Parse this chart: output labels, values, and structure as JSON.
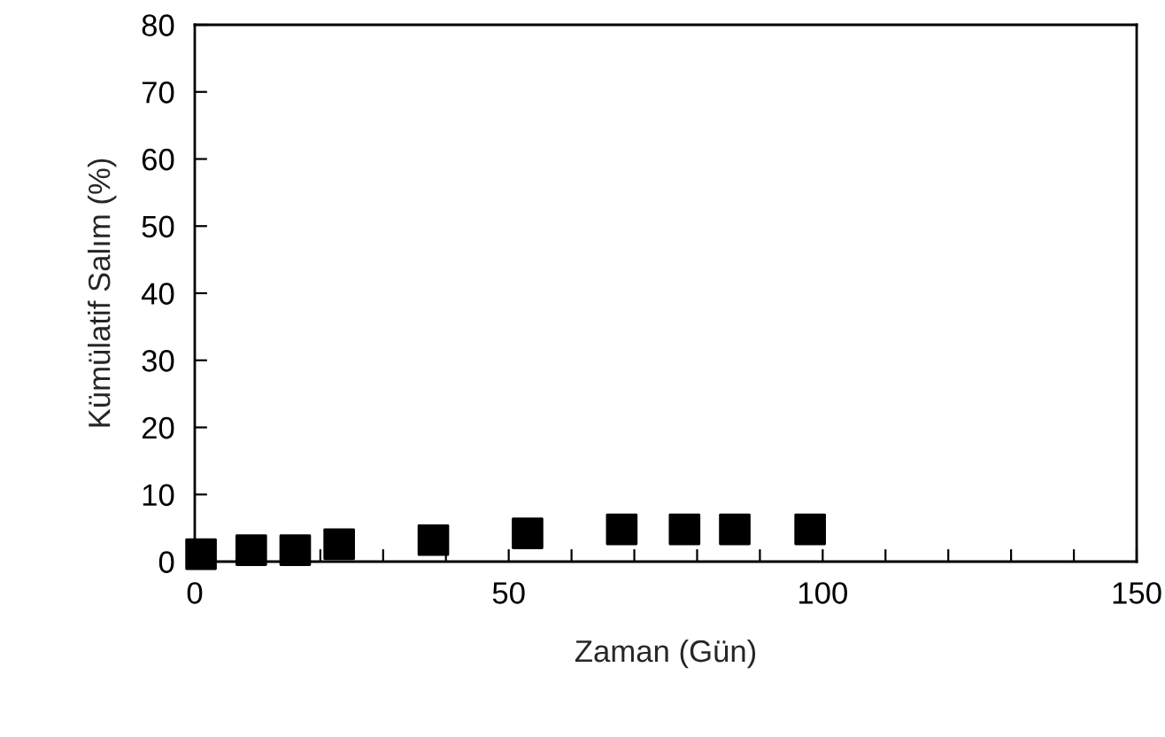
{
  "chart_data": {
    "type": "scatter",
    "xlabel": "Zaman (Gün)",
    "ylabel": "Kümülatif Salım (%)",
    "x": [
      1,
      9,
      16,
      23,
      38,
      53,
      68,
      78,
      86,
      98
    ],
    "series": [
      {
        "color": "#000000",
        "values": [
          1.1,
          1.7,
          1.7,
          2.6,
          3.2,
          4.2,
          4.8,
          4.8,
          4.8,
          4.8
        ]
      }
    ],
    "marker": "square",
    "xlim": [
      0,
      150
    ],
    "ylim": [
      0,
      80
    ],
    "xticks": [
      0,
      {
        "value": 10,
        "label": null
      },
      {
        "value": 20,
        "label": null
      },
      {
        "value": 30,
        "label": null
      },
      {
        "value": 40,
        "label": null
      },
      50,
      {
        "value": 60,
        "label": null
      },
      {
        "value": 70,
        "label": null
      },
      {
        "value": 80,
        "label": null
      },
      {
        "value": 90,
        "label": null
      },
      100,
      {
        "value": 110,
        "label": null
      },
      {
        "value": 120,
        "label": null
      },
      {
        "value": 130,
        "label": null
      },
      {
        "value": 140,
        "label": null
      },
      150
    ],
    "yticks": [
      0,
      10,
      20,
      30,
      40,
      50,
      60,
      70,
      80
    ],
    "grid": false,
    "legend": false
  }
}
